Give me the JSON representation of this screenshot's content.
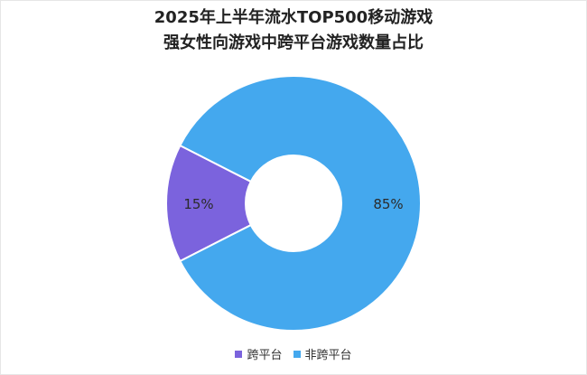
{
  "chart_data": {
    "type": "pie",
    "variant": "donut",
    "title": "2025年上半年流水TOP500移动游戏",
    "subtitle": "强女性向游戏中跨平台游戏数量占比",
    "categories": [
      "跨平台",
      "非跨平台"
    ],
    "values": [
      15,
      85
    ],
    "labels": [
      "15%",
      "85%"
    ],
    "colors": [
      "#7b63dd",
      "#44a8ee"
    ],
    "legend_position": "bottom"
  }
}
